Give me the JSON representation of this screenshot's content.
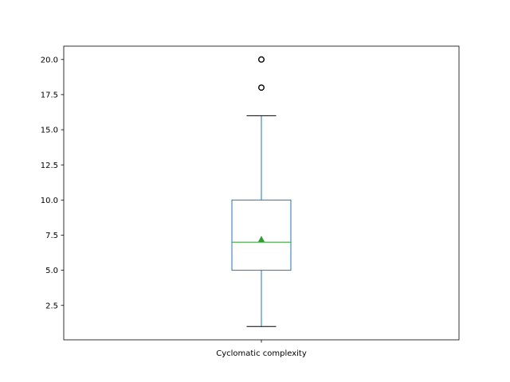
{
  "chart_data": {
    "type": "box",
    "title": "",
    "xlabel": "",
    "ylabel": "",
    "categories": [
      "Cyclomatic complexity"
    ],
    "series": [
      {
        "name": "Cyclomatic complexity",
        "whisker_low": 1.0,
        "q1": 5.0,
        "median": 7.0,
        "mean": 7.2,
        "q3": 10.0,
        "whisker_high": 16.0,
        "outliers": [
          18.0,
          20.0
        ]
      }
    ],
    "ylim": [
      0.05,
      20.95
    ],
    "yticks": [
      "2.5",
      "5.0",
      "7.5",
      "10.0",
      "12.5",
      "15.0",
      "17.5",
      "20.0"
    ],
    "grid": false,
    "legend": "none",
    "colors": {
      "box": "#1f77b4",
      "median": "#2ca02c",
      "mean_marker": "#2ca02c",
      "caps": "#000000",
      "outliers": "#000000",
      "axes": "#000000"
    }
  }
}
